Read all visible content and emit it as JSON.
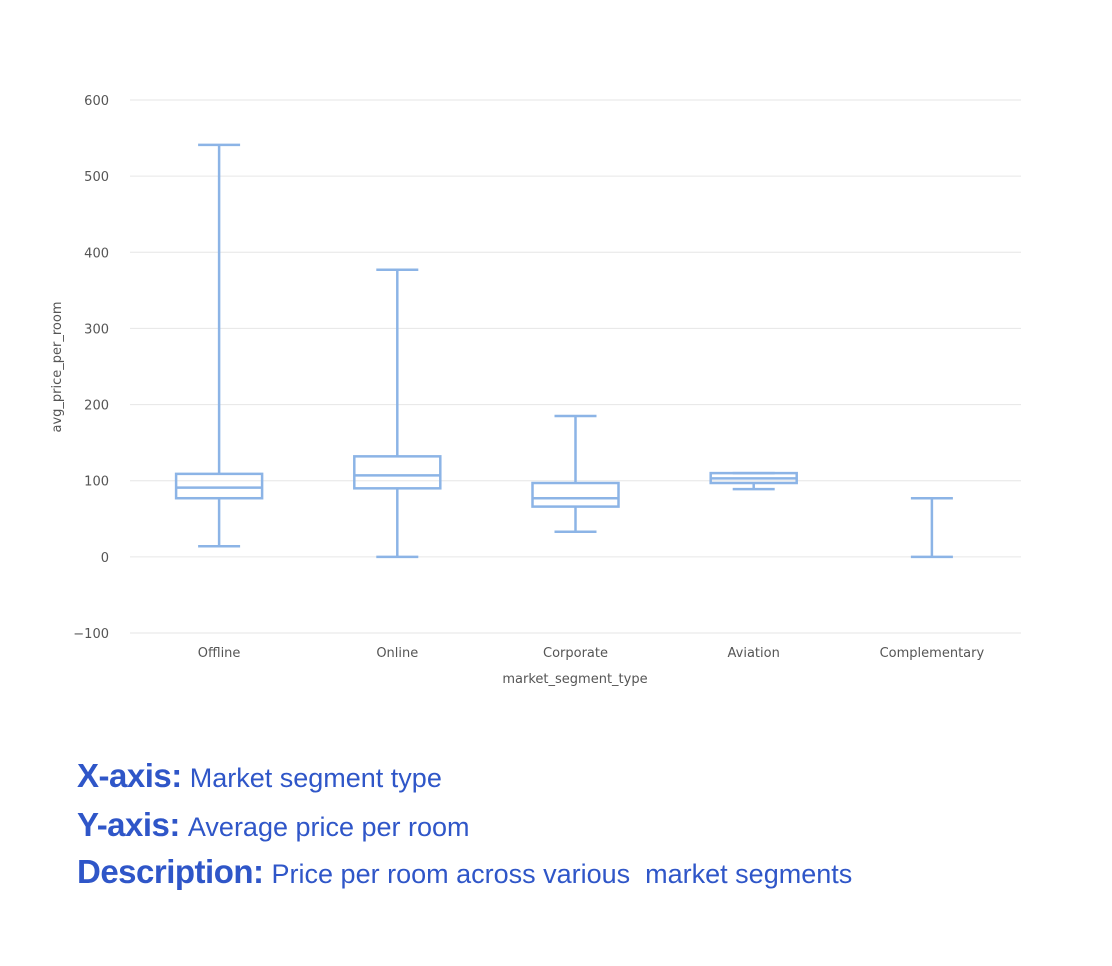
{
  "chart_data": {
    "type": "box",
    "categories": [
      "Offline",
      "Online",
      "Corporate",
      "Aviation",
      "Complementary"
    ],
    "series": [
      {
        "boxes": [
          {
            "category": "Offline",
            "min": 14,
            "q1": 77,
            "median": 91,
            "q3": 109,
            "max": 541
          },
          {
            "category": "Online",
            "min": 0,
            "q1": 90,
            "median": 107,
            "q3": 132,
            "max": 377
          },
          {
            "category": "Corporate",
            "min": 33,
            "q1": 66,
            "median": 77,
            "q3": 97,
            "max": 185
          },
          {
            "category": "Aviation",
            "min": 89,
            "q1": 97,
            "median": 103,
            "q3": 110,
            "max": 110
          },
          {
            "category": "Complementary",
            "min": 0,
            "q1": 0,
            "median": 0,
            "q3": 0,
            "max": 77
          }
        ]
      }
    ],
    "xlabel": "market_segment_type",
    "ylabel": "avg_price_per_room",
    "yticks": [
      600,
      500,
      400,
      300,
      200,
      100,
      0,
      -100
    ],
    "ylim": [
      -100,
      600
    ],
    "grid": true,
    "colors": {
      "box": "#8cb4e6",
      "grid": "#e6e6e6",
      "tick_text": "#555555"
    }
  },
  "caption": {
    "x_key": "X-axis:",
    "x_value": "Market segment type",
    "y_key": "Y-axis:",
    "y_value": "Average price per room",
    "desc_key": "Description:",
    "desc_value": "Price per room across various  market segments",
    "color": "#2f56c8"
  }
}
